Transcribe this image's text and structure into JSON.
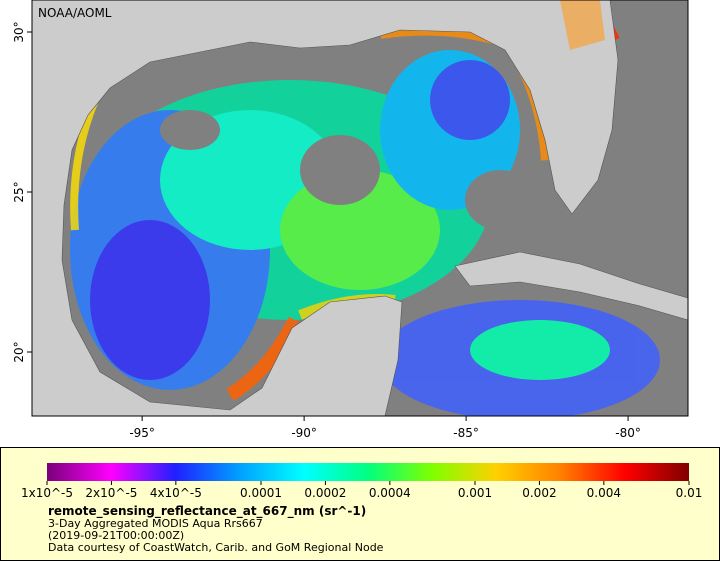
{
  "map": {
    "watermark": "NOAA/AOML",
    "xlim": [
      -98.4,
      -78.15
    ],
    "ylim": [
      18,
      31
    ],
    "lon_ticks": [
      {
        "value": -95,
        "label": "-95°"
      },
      {
        "value": -90,
        "label": "-90°"
      },
      {
        "value": -85,
        "label": "-85°"
      },
      {
        "value": -80,
        "label": "-80°"
      }
    ],
    "lat_ticks": [
      {
        "value": 30,
        "label": "30°"
      },
      {
        "value": 25,
        "label": "25°"
      },
      {
        "value": 20,
        "label": "20°"
      }
    ]
  },
  "colorbar": {
    "scale": "log",
    "lim": [
      1e-05,
      0.01
    ],
    "colors": [
      "#7a007a",
      "#ff00ff",
      "#2020ff",
      "#00a0ff",
      "#00ffff",
      "#00ff80",
      "#80ff00",
      "#ffd000",
      "#ff8000",
      "#ff0000",
      "#800000"
    ],
    "ticks": [
      {
        "value": 1e-05,
        "label": "1x10^-5"
      },
      {
        "value": 2e-05,
        "label": "2x10^-5"
      },
      {
        "value": 4e-05,
        "label": "4x10^-5"
      },
      0.0001,
      0.0002,
      0.0004,
      0.001,
      0.002,
      0.004,
      0.01
    ]
  },
  "legend": {
    "variable": "remote_sensing_reflectance_at_667_nm (sr^-1)",
    "dataset": "3-Day Aggregated MODIS Aqua Rrs667",
    "time": "(2019-09-21T00:00:00Z)",
    "credit": "Data courtesy of CoastWatch, Carib. and GoM Regional Node"
  }
}
